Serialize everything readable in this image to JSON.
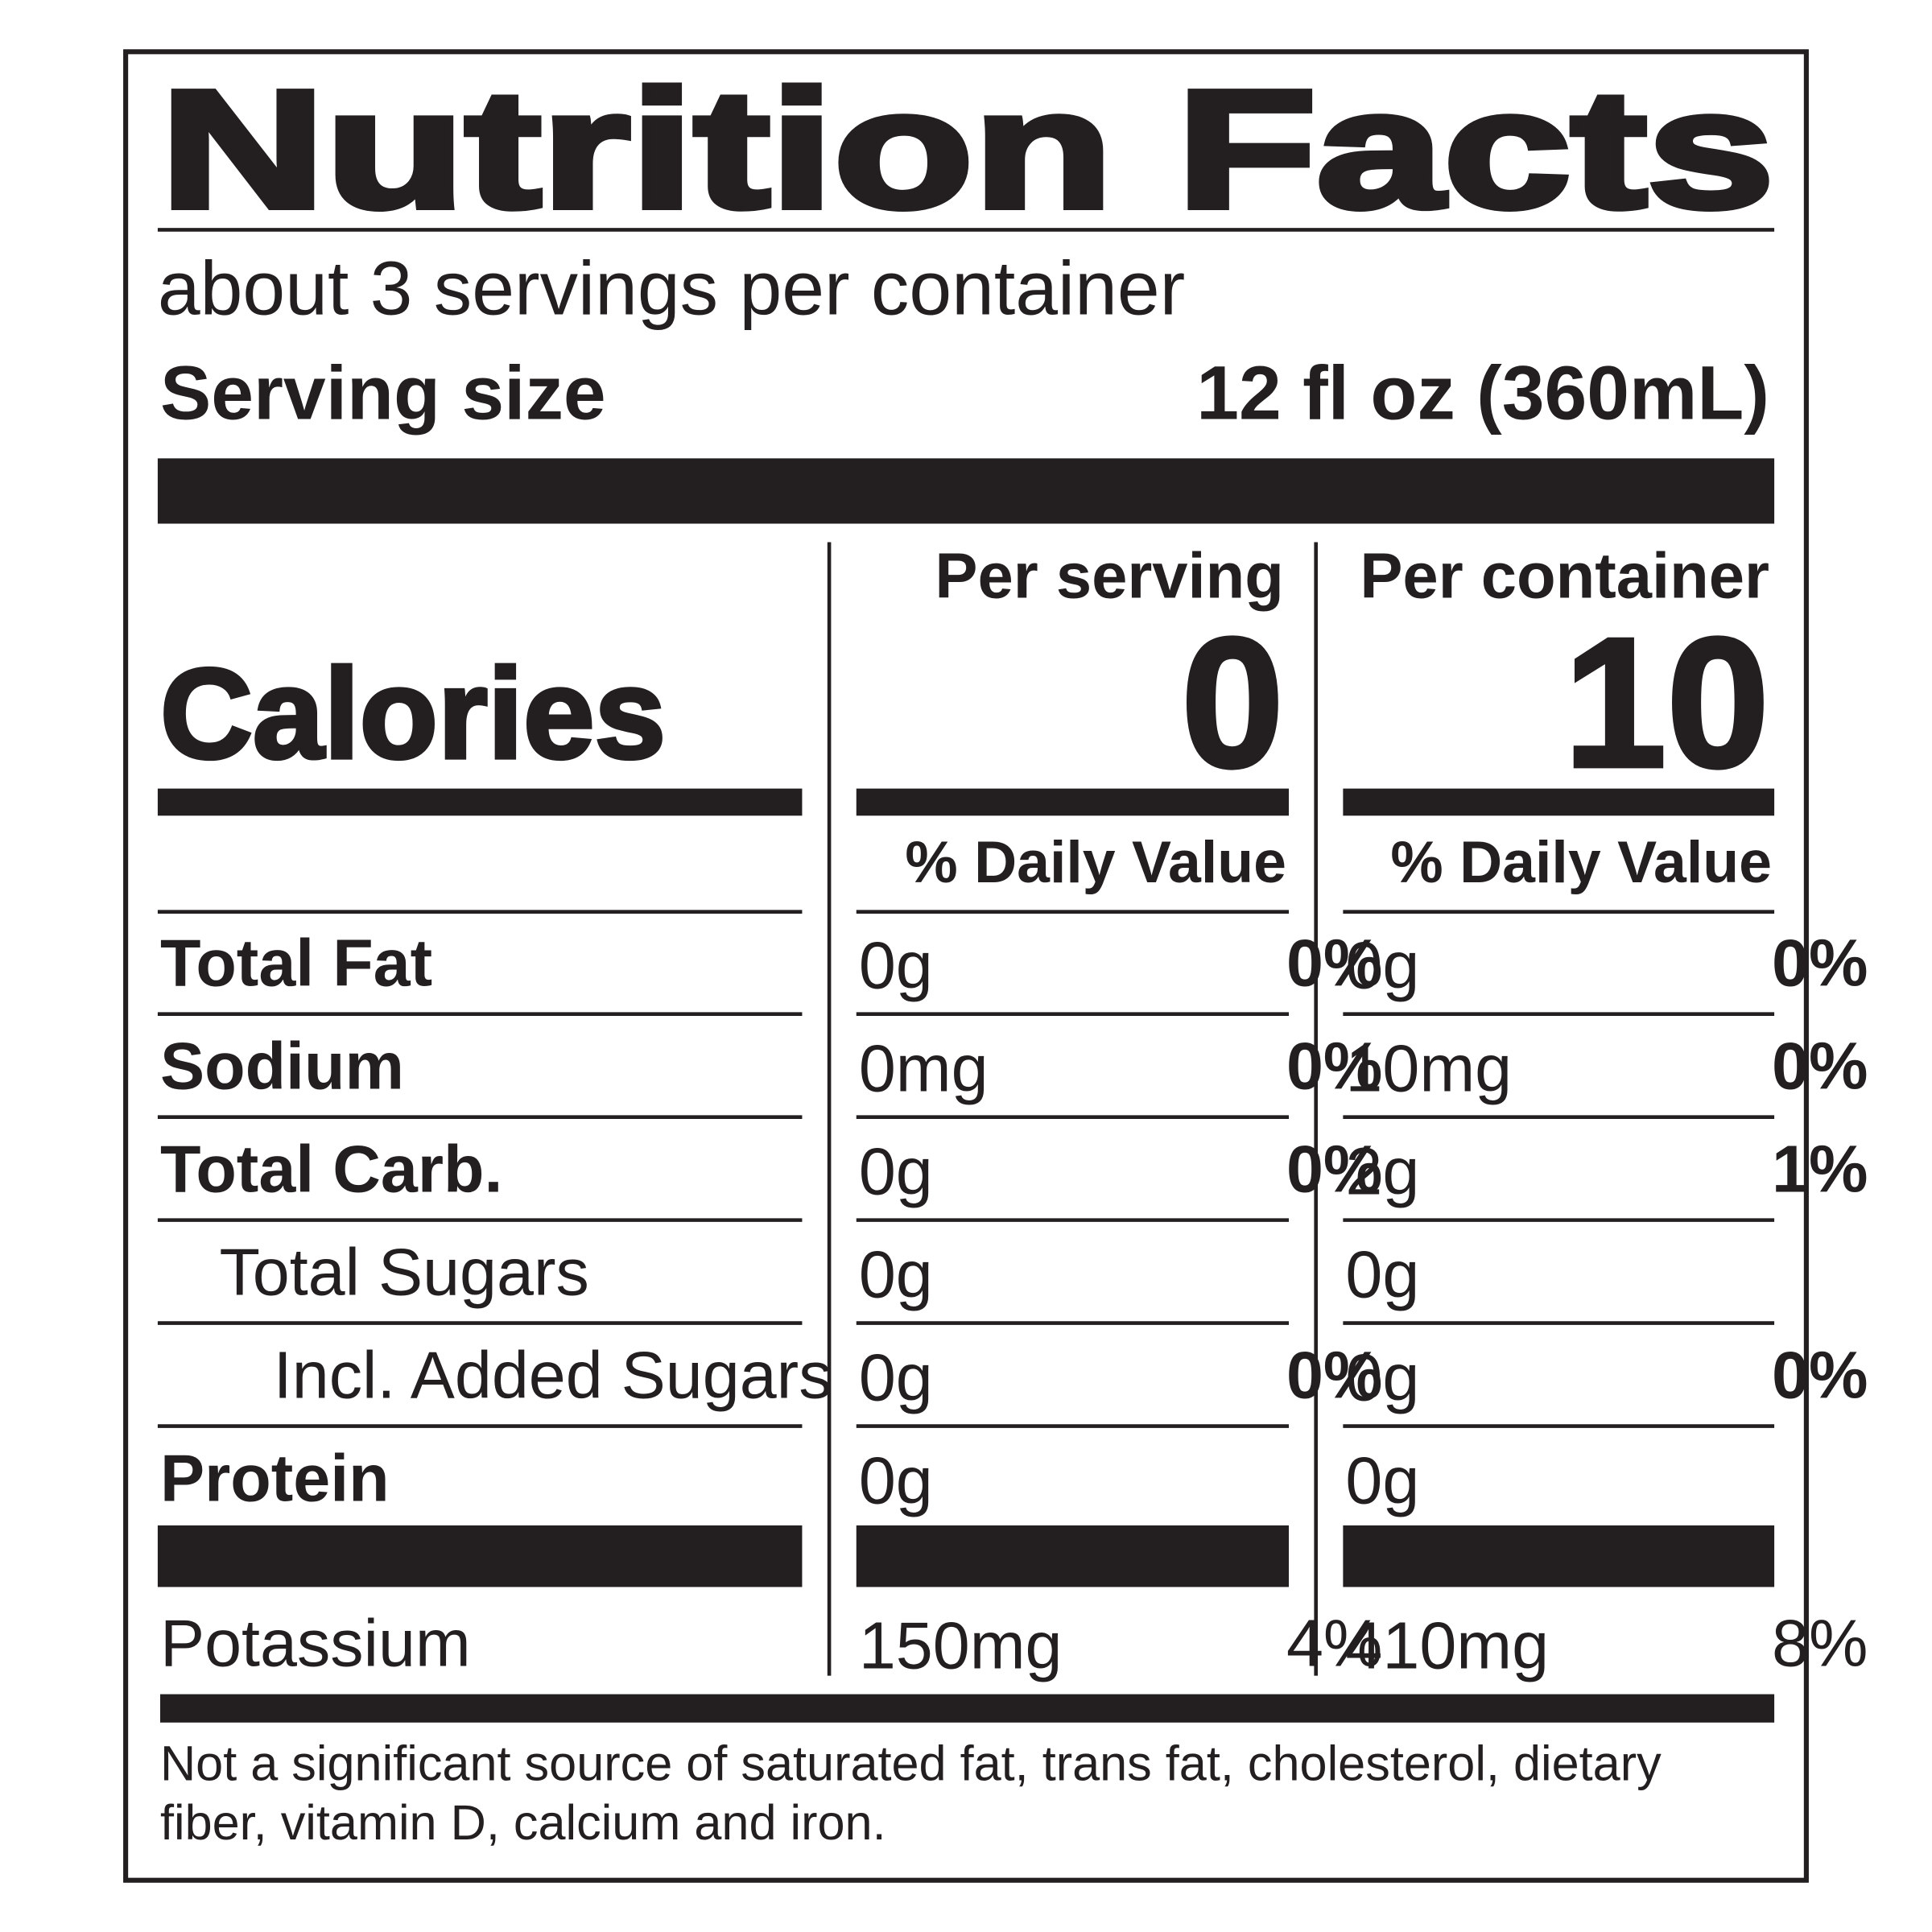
{
  "title": "Nutrition Facts",
  "servings_per_container": "about 3 servings per container",
  "serving_size": {
    "label": "Serving size",
    "value": "12 fl oz (360mL)"
  },
  "columns": [
    "Per serving",
    "Per container"
  ],
  "calories": {
    "label": "Calories",
    "values": [
      0,
      10
    ]
  },
  "daily_value_header": [
    "% Daily Value",
    "% Daily Value"
  ],
  "rows": [
    {
      "name": "Total Fat",
      "level": 0,
      "bold": true,
      "per_serving": {
        "amount": "0g",
        "dv": "0%"
      },
      "per_container": {
        "amount": "0g",
        "dv": "0%"
      }
    },
    {
      "name": "Sodium",
      "level": 0,
      "bold": true,
      "per_serving": {
        "amount": "0mg",
        "dv": "0%"
      },
      "per_container": {
        "amount": "10mg",
        "dv": "0%"
      }
    },
    {
      "name": "Total Carb.",
      "level": 0,
      "bold": true,
      "per_serving": {
        "amount": "0g",
        "dv": "0%"
      },
      "per_container": {
        "amount": "2g",
        "dv": "1%"
      }
    },
    {
      "name": "Total Sugars",
      "level": 1,
      "bold": false,
      "per_serving": {
        "amount": "0g",
        "dv": null
      },
      "per_container": {
        "amount": "0g",
        "dv": null
      }
    },
    {
      "name": "Incl. Added Sugars",
      "level": 2,
      "bold": false,
      "per_serving": {
        "amount": "0g",
        "dv": "0%"
      },
      "per_container": {
        "amount": "0g",
        "dv": "0%"
      }
    },
    {
      "name": "Protein",
      "level": 0,
      "bold": true,
      "per_serving": {
        "amount": "0g",
        "dv": null
      },
      "per_container": {
        "amount": "0g",
        "dv": null
      }
    }
  ],
  "minerals": [
    {
      "name": "Potassium",
      "level": 0,
      "bold": false,
      "per_serving": {
        "amount": "150mg",
        "dv": "4%"
      },
      "per_container": {
        "amount": "410mg",
        "dv": "8%"
      }
    }
  ],
  "footnote": [
    "Not a significant source of saturated fat, trans fat, cholesterol, dietary",
    "fiber, vitamin D, calcium and iron."
  ]
}
